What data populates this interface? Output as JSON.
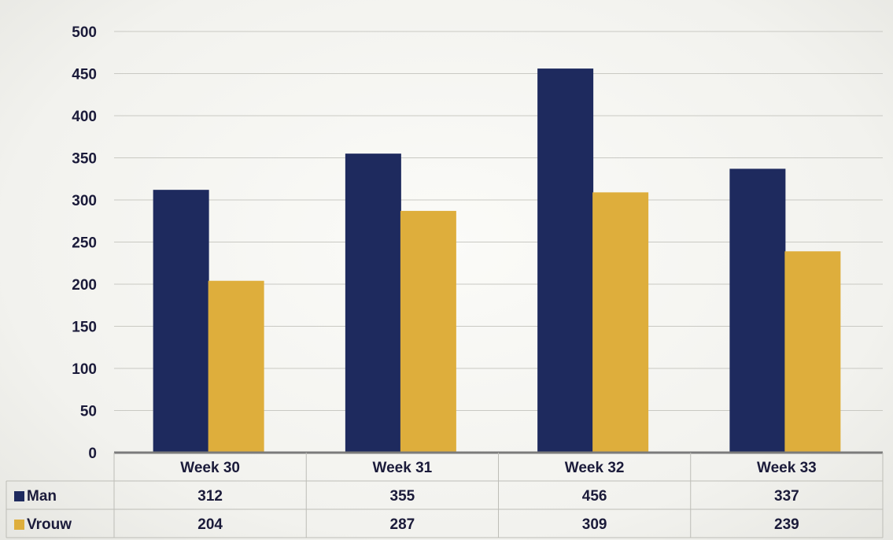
{
  "colors": {
    "man": "#1e2a5e",
    "vrouw": "#deae3c",
    "grid": "#c9c9c3",
    "table_border": "#bdbdb7"
  },
  "chart_data": {
    "type": "bar",
    "categories": [
      "Week 30",
      "Week 31",
      "Week 32",
      "Week 33"
    ],
    "series": [
      {
        "name": "Man",
        "values": [
          312,
          355,
          456,
          337
        ]
      },
      {
        "name": "Vrouw",
        "values": [
          204,
          287,
          309,
          239
        ]
      }
    ],
    "ylim": [
      0,
      500
    ],
    "yticks": [
      0,
      50,
      100,
      150,
      200,
      250,
      300,
      350,
      400,
      450,
      500
    ],
    "grid": true,
    "legend": "data-table"
  }
}
